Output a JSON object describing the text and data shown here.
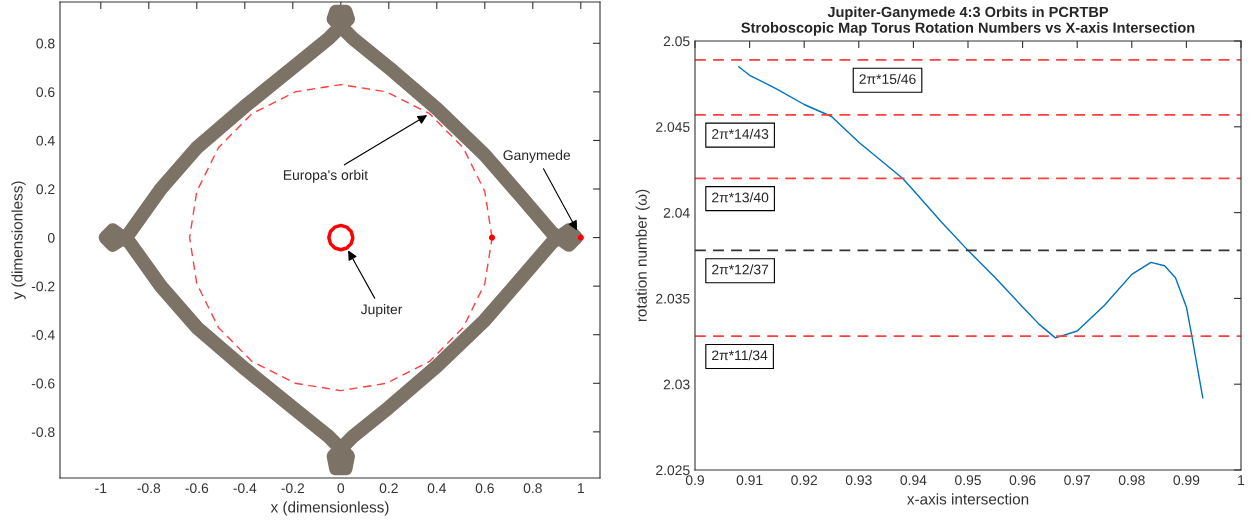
{
  "chart_data": [
    {
      "type": "line",
      "xlabel": "x (dimensionless)",
      "ylabel": "y (dimensionless)",
      "xlim": [
        -1.17,
        1.08
      ],
      "ylim": [
        -0.99,
        0.97
      ],
      "xticks": [
        -1,
        -0.8,
        -0.6,
        -0.4,
        -0.2,
        0,
        0.2,
        0.4,
        0.6,
        0.8,
        1
      ],
      "yticks": [
        -0.8,
        -0.6,
        -0.4,
        -0.2,
        0,
        0.2,
        0.4,
        0.6,
        0.8
      ],
      "grid": false,
      "legend": false,
      "series": [
        {
          "color": "#7d7266",
          "line_style": "solid",
          "x": [
            -0.88,
            -0.75,
            -0.6,
            -0.4,
            -0.2,
            -0.05,
            0.03,
            0.02,
            -0.02,
            -0.03,
            0.05,
            0.2,
            0.4,
            0.6,
            0.75,
            0.88,
            0.95,
            0.98,
            0.95,
            0.88,
            0.75,
            0.6,
            0.4,
            0.2,
            0.05,
            -0.03,
            -0.02,
            0.02,
            0.03,
            -0.05,
            -0.2,
            -0.4,
            -0.6,
            -0.75,
            -0.88,
            -0.95,
            -0.98,
            -0.95,
            -0.89
          ],
          "values": [
            0.02,
            0.2,
            0.37,
            0.54,
            0.7,
            0.82,
            0.9,
            0.93,
            0.93,
            0.9,
            0.82,
            0.7,
            0.53,
            0.34,
            0.17,
            0.02,
            -0.03,
            0.0,
            0.03,
            -0.02,
            -0.17,
            -0.34,
            -0.53,
            -0.7,
            -0.82,
            -0.9,
            -0.95,
            -0.95,
            -0.9,
            -0.82,
            -0.7,
            -0.54,
            -0.37,
            -0.2,
            -0.02,
            0.03,
            0.0,
            -0.03,
            0.01
          ]
        },
        {
          "color": "#ff4040",
          "line_style": "dashed",
          "x": [
            0.63,
            0.6,
            0.51,
            0.37,
            0.19,
            0.0,
            -0.19,
            -0.37,
            -0.51,
            -0.6,
            -0.63,
            -0.6,
            -0.51,
            -0.37,
            -0.19,
            0.0,
            0.19,
            0.37,
            0.51,
            0.6,
            0.629
          ],
          "values": [
            0.0,
            0.19,
            0.37,
            0.51,
            0.6,
            0.63,
            0.6,
            0.51,
            0.37,
            0.19,
            0.0,
            -0.19,
            -0.37,
            -0.51,
            -0.6,
            -0.63,
            -0.6,
            -0.51,
            -0.37,
            -0.19,
            -0.01
          ]
        },
        {
          "color": "#ff0000",
          "line_style": "solid",
          "x": [
            0.05,
            0.043,
            0.025,
            0.0,
            -0.025,
            -0.043,
            -0.05,
            -0.043,
            -0.025,
            0.0,
            0.025,
            0.043,
            0.0499
          ],
          "values": [
            0.0,
            0.025,
            0.043,
            0.05,
            0.043,
            0.025,
            0.0,
            -0.025,
            -0.043,
            -0.05,
            -0.043,
            -0.025,
            -0.003
          ]
        },
        {
          "type": "scatter",
          "color": "#ff0000",
          "marker": "circle",
          "x": [
            0.63,
            1
          ],
          "values": [
            0.0,
            0.0
          ]
        }
      ],
      "annotations": [
        {
          "text": "Europa's orbit",
          "x": 0.37,
          "y": 0.51
        },
        {
          "text": "Ganymede",
          "x": 0.99,
          "y": 0.02
        },
        {
          "text": "Jupiter",
          "x": 0.025,
          "y": -0.043
        }
      ]
    },
    {
      "type": "line",
      "title": "Jupiter-Ganymede 4:3 Orbits in PCRTBP\nStroboscopic Map Torus Rotation Numbers vs X-axis Intersection",
      "xlabel": "x-axis intersection",
      "ylabel": "rotation number (ω)",
      "xlim": [
        0.9,
        1
      ],
      "ylim": [
        2.025,
        2.05
      ],
      "xticks": [
        {
          "value": 0.9,
          "label": "0.9"
        },
        0.91,
        0.92,
        0.93,
        0.94,
        0.95,
        0.96,
        0.97,
        0.98,
        0.99,
        {
          "value": 1,
          "label": "1"
        }
      ],
      "yticks": [
        2.025,
        2.03,
        2.035,
        2.04,
        2.045,
        2.05
      ],
      "grid": false,
      "legend": false,
      "series": [
        {
          "color": "#0072bd",
          "line_style": "solid",
          "x": [
            0.908,
            0.91,
            0.915,
            0.92,
            0.925,
            0.93,
            0.938,
            0.94,
            0.945,
            0.95,
            0.955,
            0.96,
            0.963,
            0.966,
            0.97,
            0.975,
            0.98,
            0.9835,
            0.986,
            0.988,
            0.99,
            0.991,
            0.992,
            0.993
          ],
          "values": [
            2.0485,
            2.048,
            2.0472,
            2.0463,
            2.0456,
            2.0441,
            2.042,
            2.0413,
            2.0395,
            2.0378,
            2.0362,
            2.0345,
            2.0335,
            2.0327,
            2.0331,
            2.0346,
            2.0364,
            2.0371,
            2.0369,
            2.0362,
            2.0345,
            2.0328,
            2.031,
            2.0292
          ]
        }
      ],
      "ref_lines": [
        {
          "axis": "y",
          "value": 2.0489,
          "label": "2π*15/46",
          "color": "#ff4040",
          "line_style": "dashed"
        },
        {
          "axis": "y",
          "value": 2.0457,
          "label": "2π*14/43",
          "color": "#ff4040",
          "line_style": "dashed"
        },
        {
          "axis": "y",
          "value": 2.042,
          "label": "2π*13/40",
          "color": "#ff4040",
          "line_style": "dashed"
        },
        {
          "axis": "y",
          "value": 2.0378,
          "label": "2π*12/37",
          "color": "#333333",
          "line_style": "dashed"
        },
        {
          "axis": "y",
          "value": 2.0328,
          "label": "2π*11/34",
          "color": "#ff4040",
          "line_style": "dashed"
        }
      ]
    }
  ]
}
